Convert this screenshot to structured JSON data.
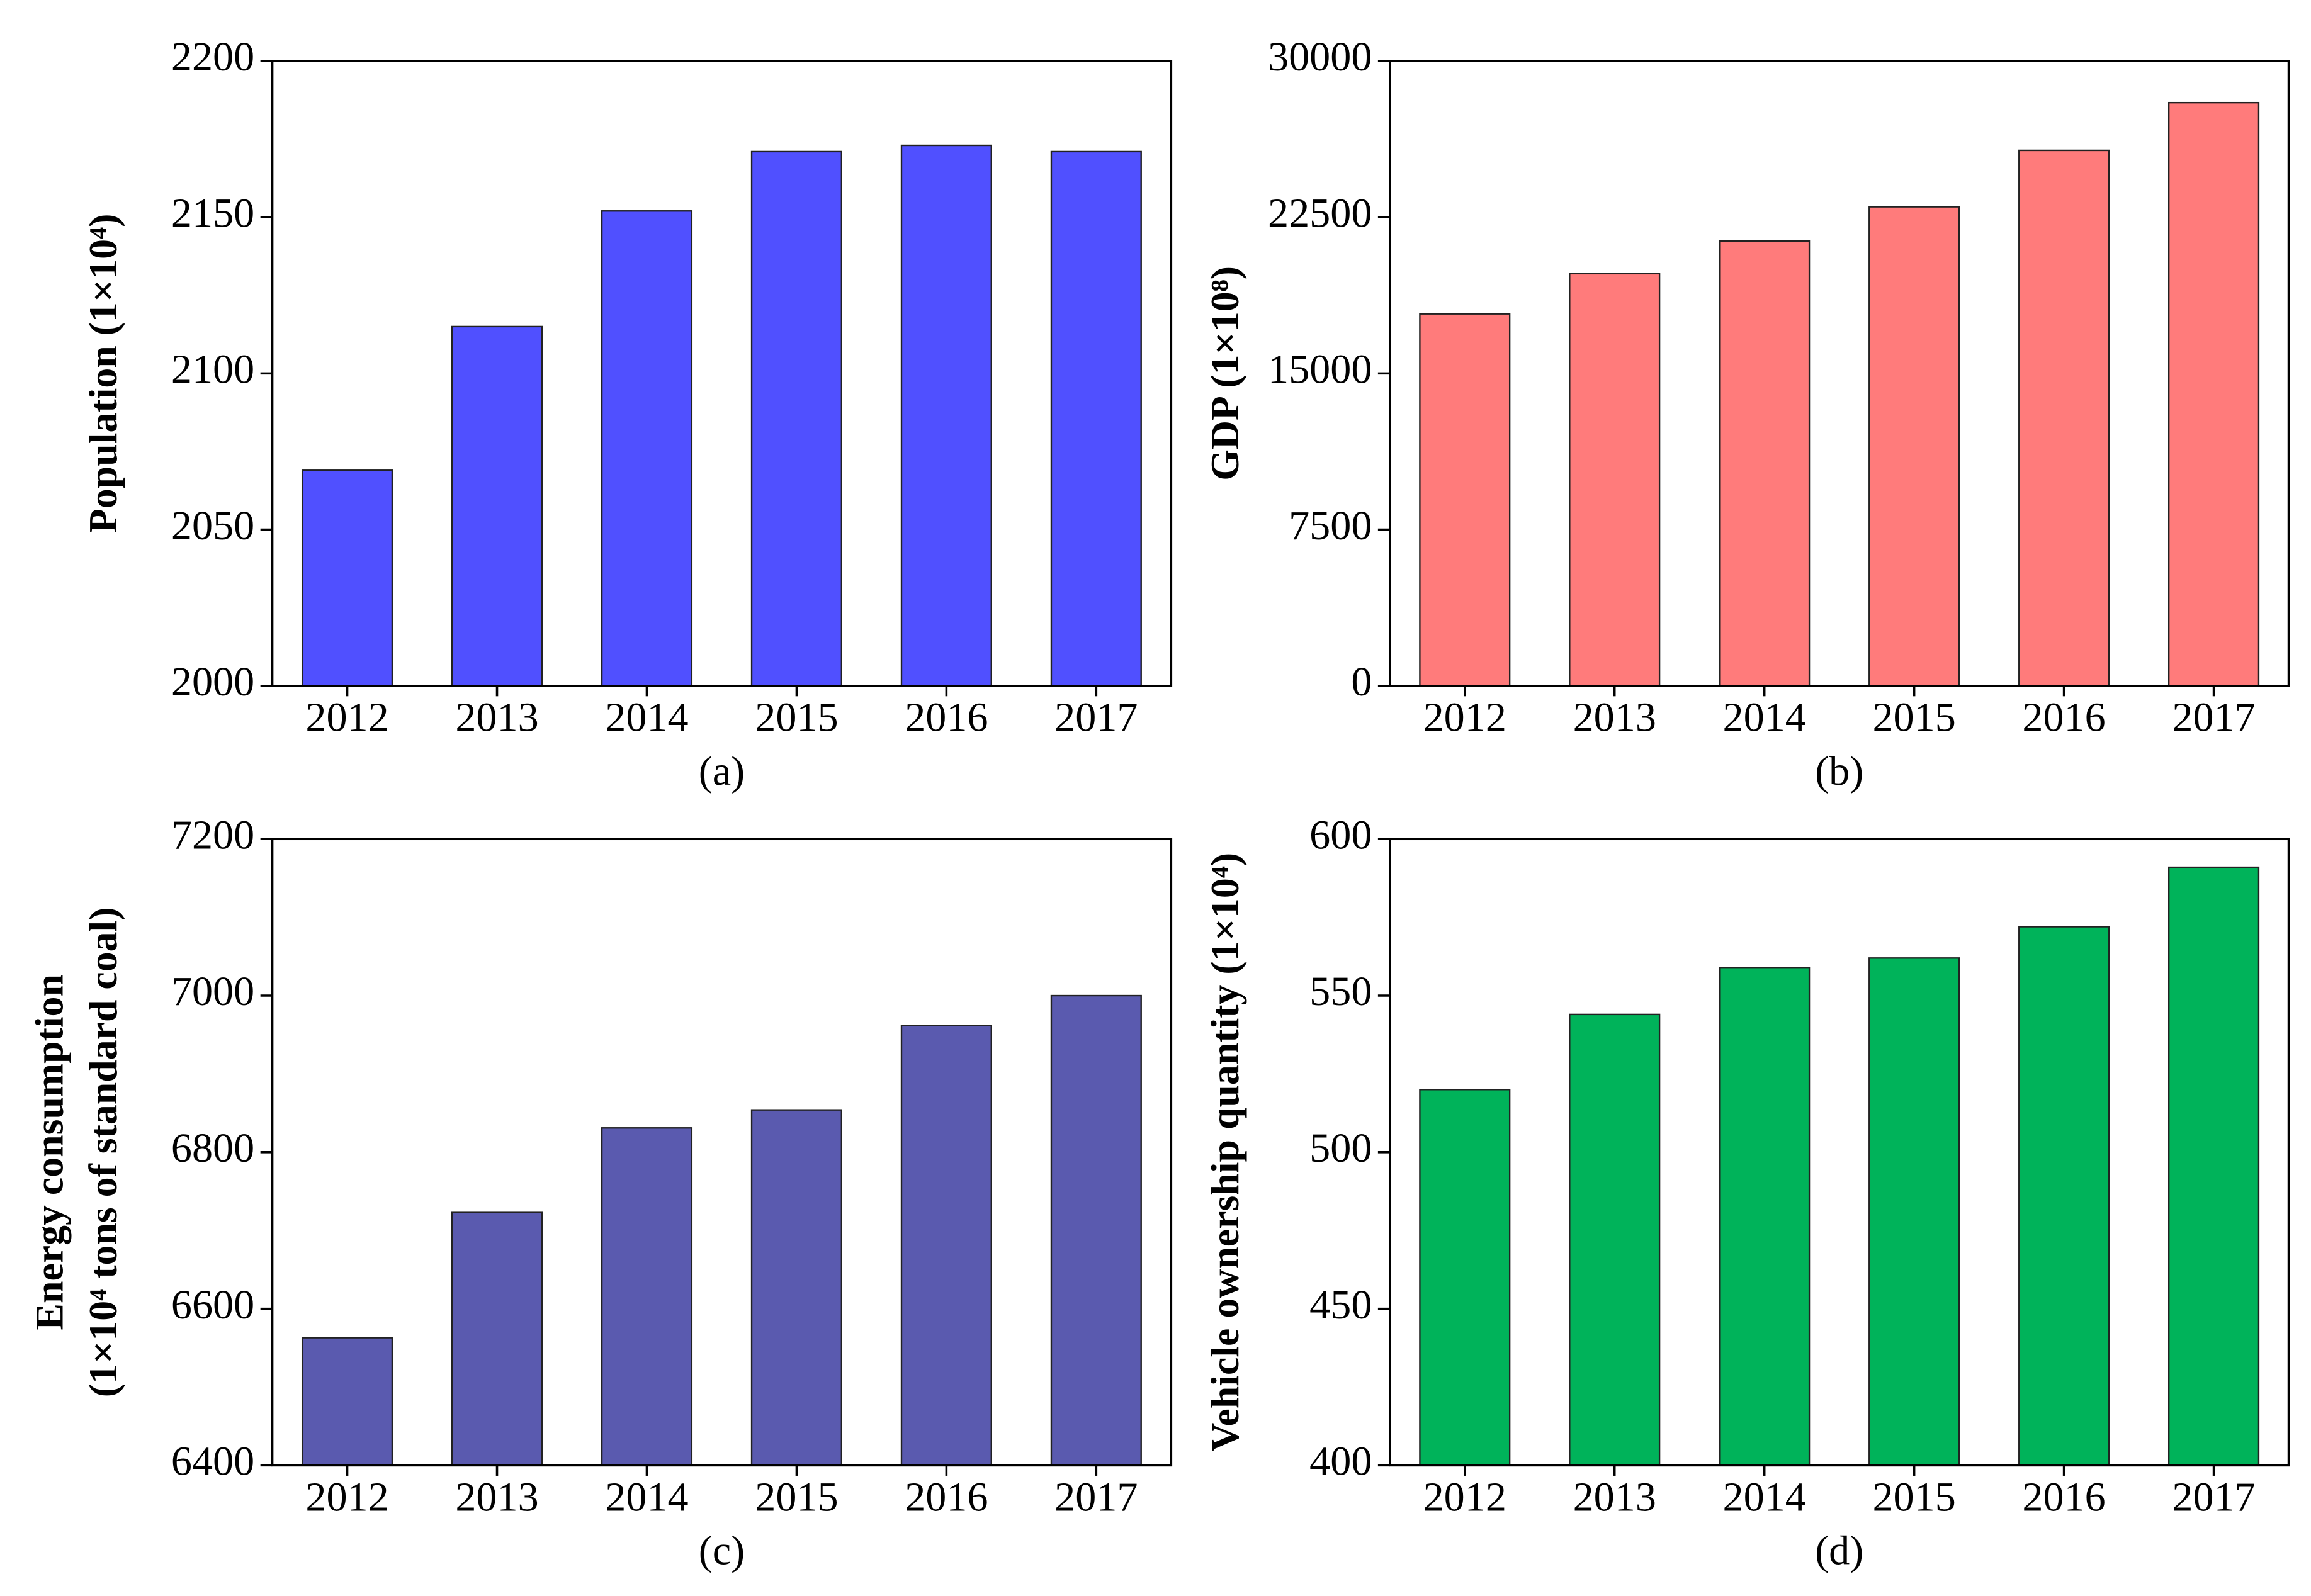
{
  "chart_data": [
    {
      "type": "bar",
      "caption": "(a)",
      "ylabel": [
        "Population (1×10⁴)"
      ],
      "color": "#5050ff",
      "categories": [
        "2012",
        "2013",
        "2014",
        "2015",
        "2016",
        "2017"
      ],
      "values": [
        2069,
        2115,
        2152,
        2171,
        2173,
        2171
      ],
      "ylim": [
        2000,
        2200
      ],
      "yticks": [
        2000,
        2050,
        2100,
        2150,
        2200
      ]
    },
    {
      "type": "bar",
      "caption": "(b)",
      "ylabel": [
        "GDP (1×10⁸)"
      ],
      "color": "#ff7b7b",
      "categories": [
        "2012",
        "2013",
        "2014",
        "2015",
        "2016",
        "2017"
      ],
      "values": [
        17860,
        19790,
        21360,
        23000,
        25710,
        28000
      ],
      "ylim": [
        0,
        30000
      ],
      "yticks": [
        0,
        7500,
        15000,
        22500,
        30000
      ]
    },
    {
      "type": "bar",
      "caption": "(c)",
      "ylabel": [
        "Energy consumption",
        "(1×10⁴ tons of standard coal)"
      ],
      "color": "#5a5aaf",
      "categories": [
        "2012",
        "2013",
        "2014",
        "2015",
        "2016",
        "2017"
      ],
      "values": [
        6563,
        6723,
        6831,
        6854,
        6962,
        7000
      ],
      "ylim": [
        6400,
        7200
      ],
      "yticks": [
        6400,
        6600,
        6800,
        7000,
        7200
      ]
    },
    {
      "type": "bar",
      "caption": "(d)",
      "ylabel": [
        "Vehicle ownership quantity (1×10⁴)"
      ],
      "color": "#00b35a",
      "categories": [
        "2012",
        "2013",
        "2014",
        "2015",
        "2016",
        "2017"
      ],
      "values": [
        520,
        544,
        559,
        562,
        572,
        591
      ],
      "ylim": [
        400,
        600
      ],
      "yticks": [
        400,
        450,
        500,
        550,
        600
      ]
    }
  ]
}
